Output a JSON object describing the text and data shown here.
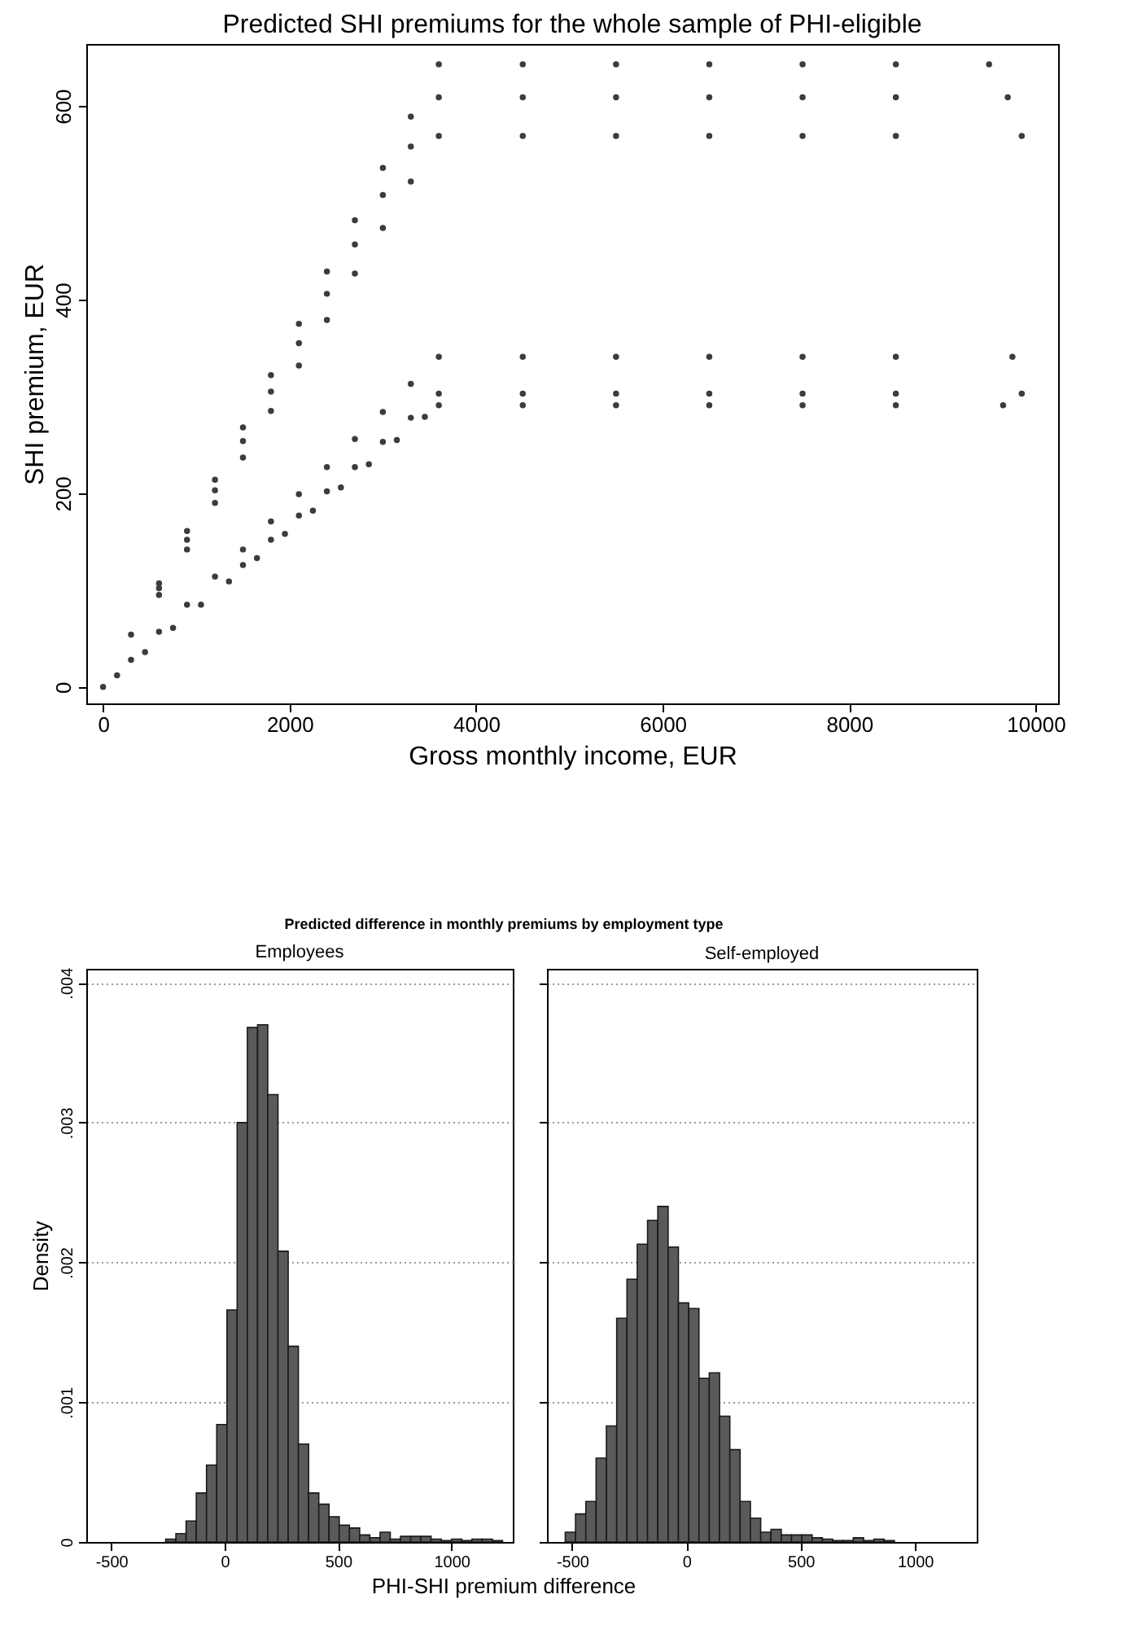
{
  "chart_data": [
    {
      "type": "scatter",
      "title": "Predicted SHI premiums for the whole sample of PHI-eligible",
      "xlabel": "Gross monthly income, EUR",
      "ylabel": "SHI premium, EUR",
      "color": "#3c3c3c",
      "marker": "circle",
      "x": [
        0,
        300,
        600,
        900,
        1200,
        1500,
        1800,
        2100,
        2400,
        2700,
        3000,
        3300,
        3600,
        4500,
        5500,
        6500,
        7500,
        8500,
        9500,
        600,
        900,
        1200,
        1500,
        1800,
        2100,
        2400,
        2700,
        3000,
        3300,
        3600,
        4500,
        5500,
        6500,
        7500,
        8500,
        9700,
        600,
        900,
        1200,
        1500,
        1800,
        2100,
        2400,
        2700,
        3000,
        3300,
        3600,
        4500,
        5500,
        6500,
        7500,
        8500,
        9850,
        300,
        600,
        900,
        1200,
        1500,
        1800,
        2100,
        2400,
        2700,
        3000,
        3300,
        3600,
        4500,
        5500,
        6500,
        7500,
        8500,
        9750,
        1500,
        1800,
        2100,
        2400,
        2700,
        3000,
        3300,
        3600,
        4500,
        5500,
        6500,
        7500,
        8500,
        9850,
        150,
        450,
        750,
        1050,
        1350,
        1650,
        1950,
        2250,
        2550,
        2850,
        3150,
        3450,
        3600,
        4500,
        5500,
        6500,
        7500,
        8500,
        9650
      ],
      "values": [
        0,
        54,
        107,
        161,
        214,
        268,
        322,
        375,
        429,
        482,
        536,
        589,
        643,
        643,
        643,
        643,
        643,
        643,
        643,
        102,
        152,
        203,
        254,
        305,
        355,
        406,
        457,
        508,
        558,
        609,
        609,
        609,
        609,
        609,
        609,
        609,
        95,
        142,
        190,
        237,
        285,
        332,
        379,
        427,
        474,
        522,
        569,
        569,
        569,
        569,
        569,
        569,
        569,
        28,
        57,
        85,
        114,
        142,
        171,
        199,
        227,
        256,
        284,
        313,
        341,
        341,
        341,
        341,
        341,
        341,
        341,
        126,
        152,
        177,
        202,
        227,
        253,
        278,
        303,
        303,
        303,
        303,
        303,
        303,
        303,
        12,
        36,
        61,
        85,
        109,
        133,
        158,
        182,
        206,
        230,
        255,
        279,
        291,
        291,
        291,
        291,
        291,
        291,
        291
      ],
      "xlim": [
        -180,
        10240
      ],
      "ylim": [
        -17,
        664
      ],
      "xticks": [
        0,
        2000,
        4000,
        6000,
        8000,
        10000
      ],
      "yticks": [
        0,
        200,
        400,
        600
      ]
    },
    {
      "type": "histogram",
      "title": "Predicted difference in monthly premiums by employment type",
      "subtitle": "Employees",
      "xlabel": "PHI-SHI premium difference",
      "ylabel": "Density",
      "color": "#5a5a5a",
      "grid": "y",
      "bins": [
        -260,
        -215,
        -170,
        -125,
        -80,
        -35,
        10,
        55,
        100,
        145,
        190,
        235,
        280,
        325,
        370,
        415,
        460,
        505,
        550,
        595,
        640,
        685,
        730,
        775,
        820,
        865,
        910,
        955,
        1000,
        1045,
        1090,
        1135,
        1180,
        1225
      ],
      "values": [
        2e-05,
        6e-05,
        0.00015,
        0.00035,
        0.00055,
        0.00084,
        0.00166,
        0.003,
        0.00368,
        0.0037,
        0.0032,
        0.00208,
        0.0014,
        0.0007,
        0.00035,
        0.00027,
        0.00018,
        0.00012,
        0.0001,
        5e-05,
        3e-05,
        7e-05,
        2e-05,
        4e-05,
        4e-05,
        4e-05,
        2e-05,
        1e-05,
        2e-05,
        1e-05,
        2e-05,
        2e-05,
        1e-05
      ],
      "xlim": [
        -610,
        1270
      ],
      "ylim": [
        0,
        0.0041
      ],
      "xticks": [
        -500,
        0,
        500,
        1000
      ],
      "yticks": [
        0,
        {
          "value": 0.001,
          "label": ".001"
        },
        {
          "value": 0.002,
          "label": ".002"
        },
        {
          "value": 0.003,
          "label": ".003"
        },
        {
          "value": 0.004,
          "label": ".004"
        }
      ]
    },
    {
      "type": "histogram",
      "subtitle": "Self-employed",
      "color": "#5a5a5a",
      "grid": "y",
      "tick_labels": "x",
      "bins": [
        -530,
        -485,
        -440,
        -395,
        -350,
        -305,
        -260,
        -215,
        -170,
        -125,
        -80,
        -35,
        10,
        55,
        100,
        145,
        190,
        235,
        280,
        325,
        370,
        415,
        460,
        505,
        550,
        595,
        640,
        685,
        730,
        775,
        820,
        865,
        910
      ],
      "values": [
        7e-05,
        0.0002,
        0.00029,
        0.0006,
        0.00083,
        0.0016,
        0.00188,
        0.00213,
        0.0023,
        0.0024,
        0.00211,
        0.00171,
        0.00167,
        0.00117,
        0.00121,
        0.0009,
        0.00066,
        0.00029,
        0.00017,
        7e-05,
        9e-05,
        5e-05,
        5e-05,
        5e-05,
        3e-05,
        2e-05,
        1e-05,
        1e-05,
        3e-05,
        1e-05,
        2e-05,
        1e-05
      ],
      "xlim": [
        -610,
        1270
      ],
      "ylim": [
        0,
        0.0041
      ],
      "xticks": [
        -500,
        0,
        500,
        1000
      ],
      "yticks": [
        0,
        0.001,
        0.002,
        0.003,
        0.004
      ]
    }
  ]
}
